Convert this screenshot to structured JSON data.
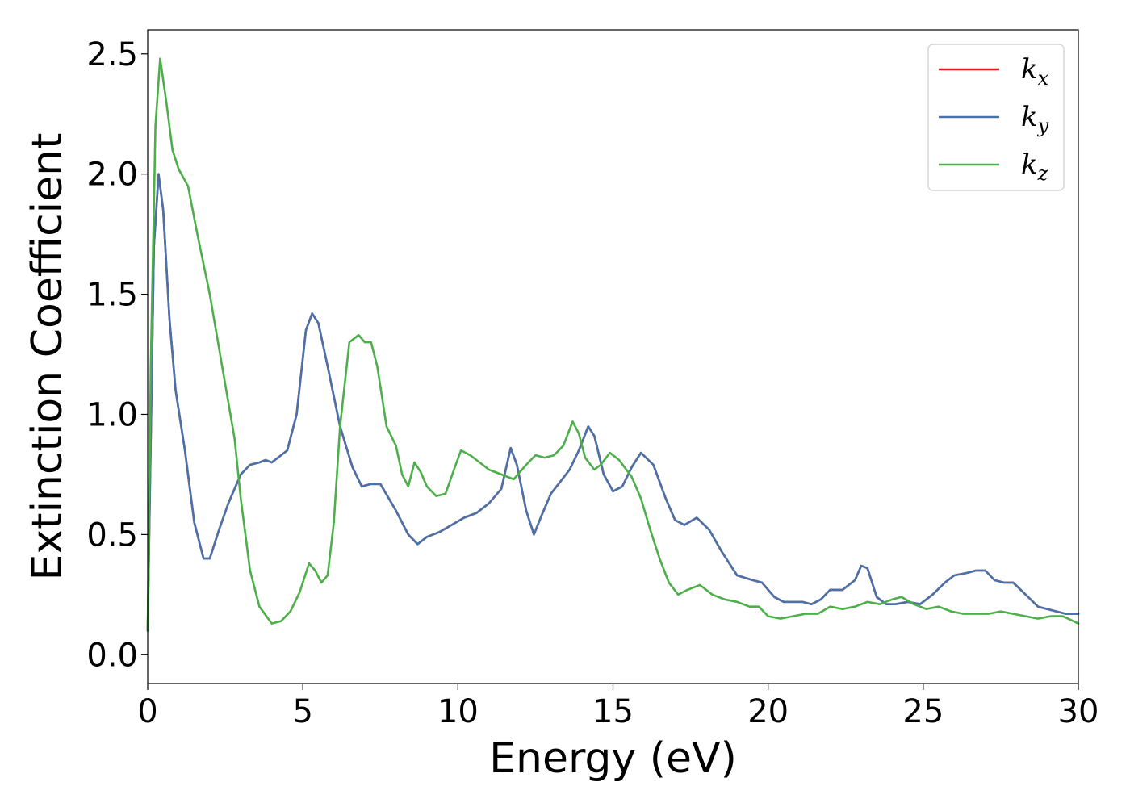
{
  "chart_data": {
    "type": "line",
    "title": "",
    "xlabel": "Energy (eV)",
    "ylabel": "Extinction Coefficient",
    "xlim": [
      0,
      30
    ],
    "ylim": [
      -0.12,
      2.6
    ],
    "xticks": [
      0,
      5,
      10,
      15,
      20,
      25,
      30
    ],
    "xtick_labels": [
      "0",
      "5",
      "10",
      "15",
      "20",
      "25",
      "30"
    ],
    "yticks": [
      0.0,
      0.5,
      1.0,
      1.5,
      2.0,
      2.5
    ],
    "ytick_labels": [
      "0.0",
      "0.5",
      "1.0",
      "1.5",
      "2.0",
      "2.5"
    ],
    "grid": false,
    "legend_position": "top-right",
    "series": [
      {
        "name": "k_x",
        "label_base": "k",
        "label_sub": "x",
        "color": "#e41a1c",
        "points": [
          [
            0,
            0.1
          ],
          [
            0.1,
            0.9
          ],
          [
            0.2,
            1.7
          ],
          [
            0.35,
            2.0
          ],
          [
            0.5,
            1.85
          ],
          [
            0.7,
            1.4
          ],
          [
            0.9,
            1.1
          ],
          [
            1.2,
            0.85
          ],
          [
            1.5,
            0.55
          ],
          [
            1.8,
            0.4
          ],
          [
            2.0,
            0.4
          ],
          [
            2.3,
            0.52
          ],
          [
            2.6,
            0.63
          ],
          [
            3.0,
            0.75
          ],
          [
            3.3,
            0.79
          ],
          [
            3.6,
            0.8
          ],
          [
            3.8,
            0.81
          ],
          [
            4.0,
            0.8
          ],
          [
            4.2,
            0.82
          ],
          [
            4.5,
            0.85
          ],
          [
            4.8,
            1.0
          ],
          [
            5.1,
            1.35
          ],
          [
            5.3,
            1.42
          ],
          [
            5.5,
            1.38
          ],
          [
            5.8,
            1.2
          ],
          [
            6.2,
            0.95
          ],
          [
            6.6,
            0.78
          ],
          [
            6.9,
            0.7
          ],
          [
            7.2,
            0.71
          ],
          [
            7.5,
            0.71
          ],
          [
            8.0,
            0.6
          ],
          [
            8.4,
            0.5
          ],
          [
            8.7,
            0.46
          ],
          [
            9.0,
            0.49
          ],
          [
            9.4,
            0.51
          ],
          [
            9.8,
            0.54
          ],
          [
            10.2,
            0.57
          ],
          [
            10.6,
            0.59
          ],
          [
            11.0,
            0.63
          ],
          [
            11.4,
            0.69
          ],
          [
            11.7,
            0.86
          ],
          [
            11.9,
            0.79
          ],
          [
            12.2,
            0.6
          ],
          [
            12.45,
            0.5
          ],
          [
            12.7,
            0.58
          ],
          [
            13.0,
            0.67
          ],
          [
            13.3,
            0.72
          ],
          [
            13.6,
            0.77
          ],
          [
            13.9,
            0.85
          ],
          [
            14.2,
            0.95
          ],
          [
            14.4,
            0.91
          ],
          [
            14.7,
            0.75
          ],
          [
            15.0,
            0.68
          ],
          [
            15.3,
            0.7
          ],
          [
            15.6,
            0.78
          ],
          [
            15.9,
            0.84
          ],
          [
            16.3,
            0.79
          ],
          [
            16.7,
            0.65
          ],
          [
            17.0,
            0.56
          ],
          [
            17.3,
            0.54
          ],
          [
            17.7,
            0.57
          ],
          [
            18.1,
            0.52
          ],
          [
            18.5,
            0.43
          ],
          [
            19.0,
            0.33
          ],
          [
            19.5,
            0.31
          ],
          [
            19.8,
            0.3
          ],
          [
            20.2,
            0.24
          ],
          [
            20.5,
            0.22
          ],
          [
            20.8,
            0.22
          ],
          [
            21.1,
            0.22
          ],
          [
            21.4,
            0.21
          ],
          [
            21.7,
            0.23
          ],
          [
            22.0,
            0.27
          ],
          [
            22.4,
            0.27
          ],
          [
            22.8,
            0.31
          ],
          [
            23.0,
            0.37
          ],
          [
            23.2,
            0.36
          ],
          [
            23.5,
            0.24
          ],
          [
            23.8,
            0.21
          ],
          [
            24.1,
            0.21
          ],
          [
            24.5,
            0.22
          ],
          [
            24.9,
            0.21
          ],
          [
            25.3,
            0.25
          ],
          [
            25.7,
            0.3
          ],
          [
            26.0,
            0.33
          ],
          [
            26.4,
            0.34
          ],
          [
            26.7,
            0.35
          ],
          [
            27.0,
            0.35
          ],
          [
            27.3,
            0.31
          ],
          [
            27.6,
            0.3
          ],
          [
            27.9,
            0.3
          ],
          [
            28.3,
            0.25
          ],
          [
            28.7,
            0.2
          ],
          [
            29.0,
            0.19
          ],
          [
            29.3,
            0.18
          ],
          [
            29.6,
            0.17
          ],
          [
            30.0,
            0.17
          ]
        ]
      },
      {
        "name": "k_y",
        "label_base": "k",
        "label_sub": "y",
        "color": "#4872aa",
        "points": [
          [
            0,
            0.1
          ],
          [
            0.1,
            0.9
          ],
          [
            0.2,
            1.7
          ],
          [
            0.35,
            2.0
          ],
          [
            0.5,
            1.85
          ],
          [
            0.7,
            1.4
          ],
          [
            0.9,
            1.1
          ],
          [
            1.2,
            0.85
          ],
          [
            1.5,
            0.55
          ],
          [
            1.8,
            0.4
          ],
          [
            2.0,
            0.4
          ],
          [
            2.3,
            0.52
          ],
          [
            2.6,
            0.63
          ],
          [
            3.0,
            0.75
          ],
          [
            3.3,
            0.79
          ],
          [
            3.6,
            0.8
          ],
          [
            3.8,
            0.81
          ],
          [
            4.0,
            0.8
          ],
          [
            4.2,
            0.82
          ],
          [
            4.5,
            0.85
          ],
          [
            4.8,
            1.0
          ],
          [
            5.1,
            1.35
          ],
          [
            5.3,
            1.42
          ],
          [
            5.5,
            1.38
          ],
          [
            5.8,
            1.2
          ],
          [
            6.2,
            0.95
          ],
          [
            6.6,
            0.78
          ],
          [
            6.9,
            0.7
          ],
          [
            7.2,
            0.71
          ],
          [
            7.5,
            0.71
          ],
          [
            8.0,
            0.6
          ],
          [
            8.4,
            0.5
          ],
          [
            8.7,
            0.46
          ],
          [
            9.0,
            0.49
          ],
          [
            9.4,
            0.51
          ],
          [
            9.8,
            0.54
          ],
          [
            10.2,
            0.57
          ],
          [
            10.6,
            0.59
          ],
          [
            11.0,
            0.63
          ],
          [
            11.4,
            0.69
          ],
          [
            11.7,
            0.86
          ],
          [
            11.9,
            0.79
          ],
          [
            12.2,
            0.6
          ],
          [
            12.45,
            0.5
          ],
          [
            12.7,
            0.58
          ],
          [
            13.0,
            0.67
          ],
          [
            13.3,
            0.72
          ],
          [
            13.6,
            0.77
          ],
          [
            13.9,
            0.85
          ],
          [
            14.2,
            0.95
          ],
          [
            14.4,
            0.91
          ],
          [
            14.7,
            0.75
          ],
          [
            15.0,
            0.68
          ],
          [
            15.3,
            0.7
          ],
          [
            15.6,
            0.78
          ],
          [
            15.9,
            0.84
          ],
          [
            16.3,
            0.79
          ],
          [
            16.7,
            0.65
          ],
          [
            17.0,
            0.56
          ],
          [
            17.3,
            0.54
          ],
          [
            17.7,
            0.57
          ],
          [
            18.1,
            0.52
          ],
          [
            18.5,
            0.43
          ],
          [
            19.0,
            0.33
          ],
          [
            19.5,
            0.31
          ],
          [
            19.8,
            0.3
          ],
          [
            20.2,
            0.24
          ],
          [
            20.5,
            0.22
          ],
          [
            20.8,
            0.22
          ],
          [
            21.1,
            0.22
          ],
          [
            21.4,
            0.21
          ],
          [
            21.7,
            0.23
          ],
          [
            22.0,
            0.27
          ],
          [
            22.4,
            0.27
          ],
          [
            22.8,
            0.31
          ],
          [
            23.0,
            0.37
          ],
          [
            23.2,
            0.36
          ],
          [
            23.5,
            0.24
          ],
          [
            23.8,
            0.21
          ],
          [
            24.1,
            0.21
          ],
          [
            24.5,
            0.22
          ],
          [
            24.9,
            0.21
          ],
          [
            25.3,
            0.25
          ],
          [
            25.7,
            0.3
          ],
          [
            26.0,
            0.33
          ],
          [
            26.4,
            0.34
          ],
          [
            26.7,
            0.35
          ],
          [
            27.0,
            0.35
          ],
          [
            27.3,
            0.31
          ],
          [
            27.6,
            0.3
          ],
          [
            27.9,
            0.3
          ],
          [
            28.3,
            0.25
          ],
          [
            28.7,
            0.2
          ],
          [
            29.0,
            0.19
          ],
          [
            29.3,
            0.18
          ],
          [
            29.6,
            0.17
          ],
          [
            30.0,
            0.17
          ]
        ]
      },
      {
        "name": "k_z",
        "label_base": "k",
        "label_sub": "z",
        "color": "#4daf4a",
        "points": [
          [
            0,
            0.1
          ],
          [
            0.1,
            1.2
          ],
          [
            0.25,
            2.2
          ],
          [
            0.4,
            2.48
          ],
          [
            0.6,
            2.3
          ],
          [
            0.8,
            2.1
          ],
          [
            1.0,
            2.02
          ],
          [
            1.3,
            1.95
          ],
          [
            1.6,
            1.75
          ],
          [
            2.0,
            1.5
          ],
          [
            2.4,
            1.2
          ],
          [
            2.8,
            0.9
          ],
          [
            3.0,
            0.65
          ],
          [
            3.3,
            0.35
          ],
          [
            3.6,
            0.2
          ],
          [
            4.0,
            0.13
          ],
          [
            4.3,
            0.14
          ],
          [
            4.6,
            0.18
          ],
          [
            4.9,
            0.26
          ],
          [
            5.2,
            0.38
          ],
          [
            5.4,
            0.35
          ],
          [
            5.6,
            0.3
          ],
          [
            5.8,
            0.33
          ],
          [
            6.0,
            0.55
          ],
          [
            6.2,
            0.95
          ],
          [
            6.5,
            1.3
          ],
          [
            6.8,
            1.33
          ],
          [
            7.0,
            1.3
          ],
          [
            7.2,
            1.3
          ],
          [
            7.4,
            1.2
          ],
          [
            7.7,
            0.95
          ],
          [
            8.0,
            0.87
          ],
          [
            8.2,
            0.75
          ],
          [
            8.4,
            0.7
          ],
          [
            8.6,
            0.8
          ],
          [
            8.8,
            0.76
          ],
          [
            9.0,
            0.7
          ],
          [
            9.3,
            0.66
          ],
          [
            9.6,
            0.67
          ],
          [
            9.9,
            0.78
          ],
          [
            10.1,
            0.85
          ],
          [
            10.4,
            0.83
          ],
          [
            10.7,
            0.8
          ],
          [
            11.0,
            0.77
          ],
          [
            11.4,
            0.75
          ],
          [
            11.8,
            0.73
          ],
          [
            12.2,
            0.79
          ],
          [
            12.5,
            0.83
          ],
          [
            12.8,
            0.82
          ],
          [
            13.1,
            0.83
          ],
          [
            13.4,
            0.87
          ],
          [
            13.7,
            0.97
          ],
          [
            13.9,
            0.92
          ],
          [
            14.1,
            0.82
          ],
          [
            14.4,
            0.77
          ],
          [
            14.6,
            0.79
          ],
          [
            14.9,
            0.84
          ],
          [
            15.2,
            0.81
          ],
          [
            15.6,
            0.74
          ],
          [
            15.9,
            0.65
          ],
          [
            16.2,
            0.52
          ],
          [
            16.5,
            0.4
          ],
          [
            16.8,
            0.3
          ],
          [
            17.1,
            0.25
          ],
          [
            17.4,
            0.27
          ],
          [
            17.8,
            0.29
          ],
          [
            18.2,
            0.25
          ],
          [
            18.6,
            0.23
          ],
          [
            19.0,
            0.22
          ],
          [
            19.4,
            0.2
          ],
          [
            19.7,
            0.2
          ],
          [
            20.0,
            0.16
          ],
          [
            20.4,
            0.15
          ],
          [
            20.8,
            0.16
          ],
          [
            21.2,
            0.17
          ],
          [
            21.6,
            0.17
          ],
          [
            22.0,
            0.2
          ],
          [
            22.4,
            0.19
          ],
          [
            22.8,
            0.2
          ],
          [
            23.2,
            0.22
          ],
          [
            23.6,
            0.21
          ],
          [
            24.0,
            0.23
          ],
          [
            24.3,
            0.24
          ],
          [
            24.7,
            0.21
          ],
          [
            25.1,
            0.19
          ],
          [
            25.5,
            0.2
          ],
          [
            25.9,
            0.18
          ],
          [
            26.3,
            0.17
          ],
          [
            26.7,
            0.17
          ],
          [
            27.1,
            0.17
          ],
          [
            27.5,
            0.18
          ],
          [
            27.9,
            0.17
          ],
          [
            28.3,
            0.16
          ],
          [
            28.7,
            0.15
          ],
          [
            29.1,
            0.16
          ],
          [
            29.5,
            0.16
          ],
          [
            30.0,
            0.13
          ]
        ]
      }
    ]
  }
}
